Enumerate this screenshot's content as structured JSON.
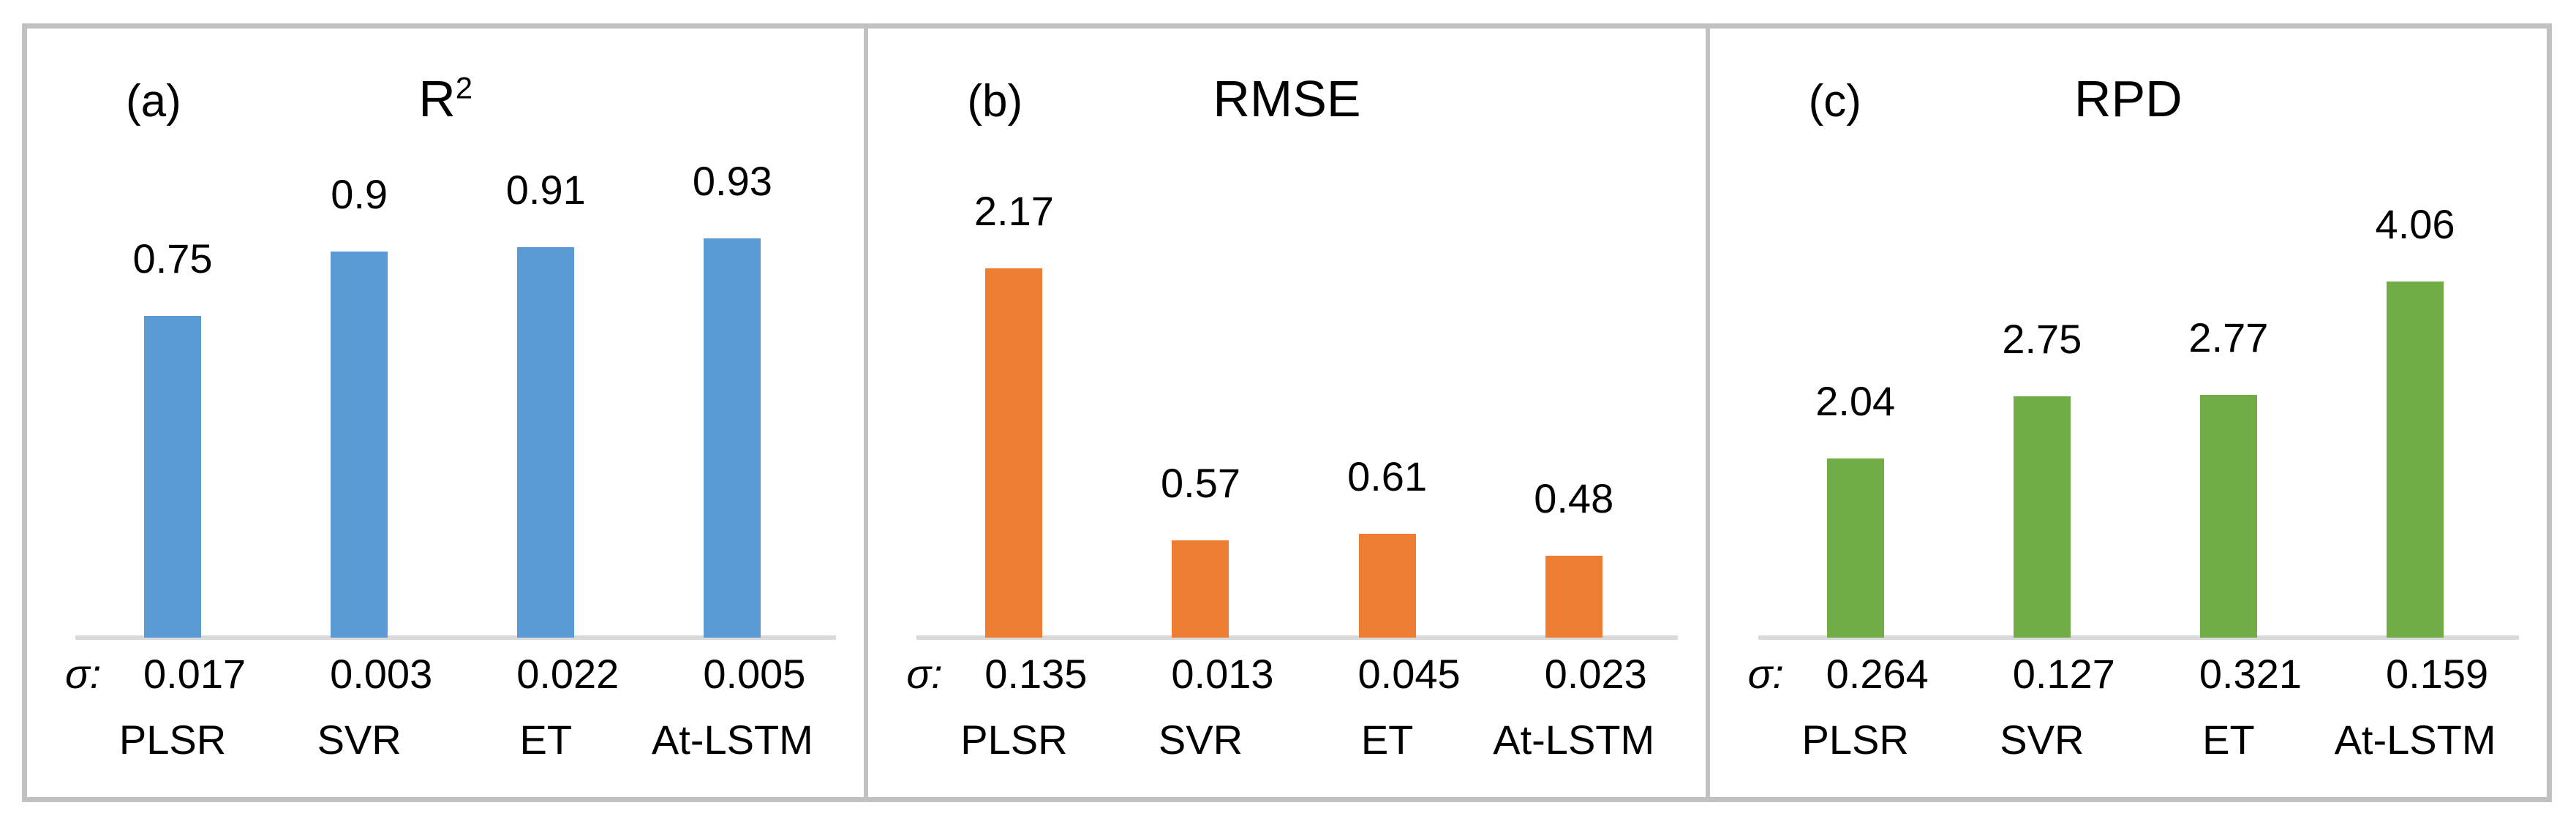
{
  "figure": {
    "panels": [
      {
        "label": "(a)",
        "title": "R",
        "title_superscript": "2",
        "sigma_prefix": "σ:",
        "bar_color": "#5B9BD5"
      },
      {
        "label": "(b)",
        "title": "RMSE",
        "title_superscript": "",
        "sigma_prefix": "σ:",
        "bar_color": "#ED7D31"
      },
      {
        "label": "(c)",
        "title": "RPD",
        "title_superscript": "",
        "sigma_prefix": "σ:",
        "bar_color": "#70AD47"
      }
    ],
    "colors": {
      "frame_border": "#C1C1C1",
      "axis_line": "#D9D9D9",
      "text": "#000000",
      "blue_series": "#5B9BD5",
      "orange_series": "#ED7D31",
      "green_series": "#70AD47"
    }
  },
  "chart_data": [
    {
      "type": "bar",
      "panel": "(a)",
      "title": "R²",
      "categories": [
        "PLSR",
        "SVR",
        "ET",
        "At-LSTM"
      ],
      "values": [
        0.75,
        0.9,
        0.91,
        0.93
      ],
      "value_labels": [
        "0.75",
        "0.9",
        "0.91",
        "0.93"
      ],
      "sigma_label": "σ:",
      "sigma_values": [
        "0.017",
        "0.003",
        "0.022",
        "0.005"
      ],
      "bar_color": "#5B9BD5",
      "ylim": [
        0,
        1.42
      ],
      "grid": false,
      "legend": false
    },
    {
      "type": "bar",
      "panel": "(b)",
      "title": "RMSE",
      "categories": [
        "PLSR",
        "SVR",
        "ET",
        "At-LSTM"
      ],
      "values": [
        2.17,
        0.57,
        0.61,
        0.48
      ],
      "value_labels": [
        "2.17",
        "0.57",
        "0.61",
        "0.48"
      ],
      "sigma_label": "σ:",
      "sigma_values": [
        "0.135",
        "0.013",
        "0.045",
        "0.023"
      ],
      "bar_color": "#ED7D31",
      "ylim": [
        0,
        3.58
      ],
      "grid": false,
      "legend": false
    },
    {
      "type": "bar",
      "panel": "(c)",
      "title": "RPD",
      "categories": [
        "PLSR",
        "SVR",
        "ET",
        "At-LSTM"
      ],
      "values": [
        2.04,
        2.75,
        2.77,
        4.06
      ],
      "value_labels": [
        "2.04",
        "2.75",
        "2.77",
        "4.06"
      ],
      "sigma_label": "σ:",
      "sigma_values": [
        "0.264",
        "0.127",
        "0.321",
        "0.159"
      ],
      "bar_color": "#70AD47",
      "ylim": [
        0,
        6.94
      ],
      "grid": false,
      "legend": false
    }
  ]
}
